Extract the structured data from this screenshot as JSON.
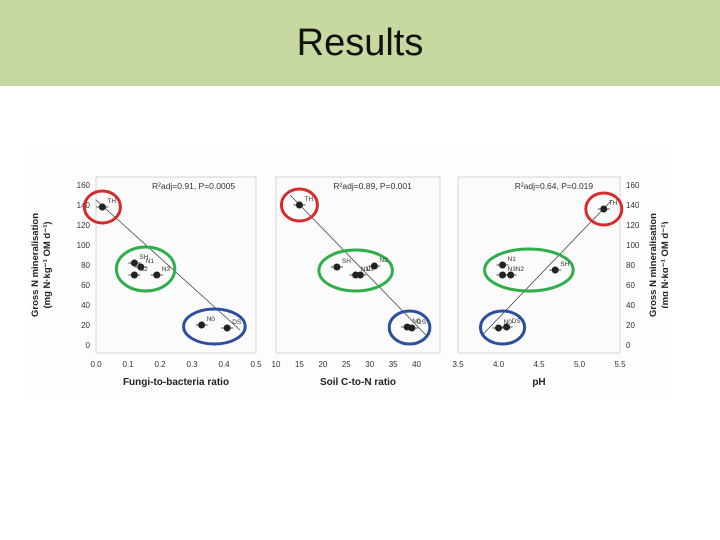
{
  "slide": {
    "title": "Results"
  },
  "colors": {
    "header_bg": "#c6d9a0",
    "th_circle": "#d62b2b",
    "mid_circle": "#2fae4a",
    "low_circle": "#2b4f9e",
    "points": "#222222"
  },
  "chart_data": [
    {
      "type": "scatter",
      "xlabel": "Fungi-to-bacteria ratio",
      "ylabel": "Gross N mineralisation (mg N kg⁻¹ OM d⁻¹)",
      "ylabel_lines": [
        "Gross N mineralisation",
        "(mg N·kg⁻¹ OM d⁻¹)"
      ],
      "annotation": "R²adj=0.91, P=0.0005",
      "xlim": [
        0.0,
        0.5
      ],
      "ylim": [
        0,
        160
      ],
      "xticks": [
        "0.0",
        "0.1",
        "0.2",
        "0.3",
        "0.4",
        "0.5"
      ],
      "yticks": [
        "0",
        "20",
        "40",
        "60",
        "80",
        "100",
        "120",
        "140",
        "160"
      ],
      "regression": [
        [
          0.0,
          145
        ],
        [
          0.45,
          15
        ]
      ],
      "points": [
        {
          "label": "TH",
          "x": 0.02,
          "y": 138
        },
        {
          "label": "SH",
          "x": 0.12,
          "y": 82
        },
        {
          "label": "N1",
          "x": 0.14,
          "y": 78
        },
        {
          "label": "N3",
          "x": 0.19,
          "y": 70
        },
        {
          "label": "N2",
          "x": 0.12,
          "y": 70
        },
        {
          "label": "N0",
          "x": 0.33,
          "y": 20
        },
        {
          "label": "DS",
          "x": 0.41,
          "y": 17
        }
      ]
    },
    {
      "type": "scatter",
      "xlabel": "Soil C-to-N ratio",
      "annotation": "R²adj=0.89, P=0.001",
      "xlim": [
        10,
        45
      ],
      "ylim": [
        0,
        160
      ],
      "xticks": [
        "10",
        "15",
        "20",
        "25",
        "30",
        "35",
        "40"
      ],
      "regression": [
        [
          13,
          150
        ],
        [
          42,
          10
        ]
      ],
      "points": [
        {
          "label": "TH",
          "x": 15,
          "y": 140
        },
        {
          "label": "SH",
          "x": 23,
          "y": 78
        },
        {
          "label": "N1",
          "x": 27,
          "y": 70
        },
        {
          "label": "N3",
          "x": 28,
          "y": 70
        },
        {
          "label": "N2",
          "x": 31,
          "y": 79
        },
        {
          "label": "N0",
          "x": 38,
          "y": 18
        },
        {
          "label": "DS",
          "x": 39,
          "y": 17
        }
      ]
    },
    {
      "type": "scatter",
      "xlabel": "pH",
      "ylabel": "Gross N mineralisation (mg N kg⁻¹ OM d⁻¹)",
      "ylabel_lines": [
        "Gross N mineralisation",
        "(mg N·kg⁻¹ OM d⁻¹)"
      ],
      "annotation": "R²adj=0.64, P=0.019",
      "xlim": [
        3.5,
        5.5
      ],
      "ylim": [
        0,
        160
      ],
      "xticks": [
        "3.5",
        "4.0",
        "4.5",
        "5.0",
        "5.5"
      ],
      "yticks": [
        "0",
        "20",
        "40",
        "60",
        "80",
        "100",
        "120",
        "140",
        "160"
      ],
      "regression": [
        [
          3.8,
          10
        ],
        [
          5.4,
          145
        ]
      ],
      "points": [
        {
          "label": "TH",
          "x": 5.3,
          "y": 136
        },
        {
          "label": "SH",
          "x": 4.7,
          "y": 75
        },
        {
          "label": "N1",
          "x": 4.05,
          "y": 80
        },
        {
          "label": "N2",
          "x": 4.15,
          "y": 70
        },
        {
          "label": "N3",
          "x": 4.05,
          "y": 70
        },
        {
          "label": "N0",
          "x": 4.0,
          "y": 17
        },
        {
          "label": "DS",
          "x": 4.1,
          "y": 18
        }
      ]
    }
  ]
}
